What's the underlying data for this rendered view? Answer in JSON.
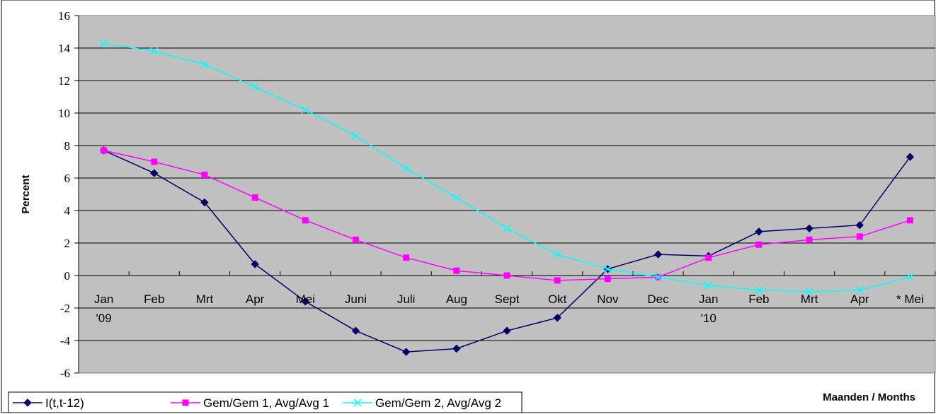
{
  "chart_data": {
    "type": "line",
    "categories": [
      "Jan '09",
      "Feb",
      "Mrt",
      "Apr",
      "Mei",
      "Juni",
      "Juli",
      "Aug",
      "Sept",
      "Okt",
      "Nov",
      "Dec",
      "Jan '10",
      "Feb",
      "Mrt",
      "Apr",
      "* Mei"
    ],
    "category_lines": [
      [
        "Jan",
        "'09"
      ],
      [
        "Feb"
      ],
      [
        "Mrt"
      ],
      [
        "Apr"
      ],
      [
        "Mei"
      ],
      [
        "Juni"
      ],
      [
        "Juli"
      ],
      [
        "Aug"
      ],
      [
        "Sept"
      ],
      [
        "Okt"
      ],
      [
        "Nov"
      ],
      [
        "Dec"
      ],
      [
        "Jan",
        "'10"
      ],
      [
        "Feb"
      ],
      [
        "Mrt"
      ],
      [
        "Apr"
      ],
      [
        "* Mei"
      ]
    ],
    "series": [
      {
        "name": "I(t,t-12)",
        "color": "#000066",
        "marker": "diamond",
        "values": [
          7.7,
          6.3,
          4.5,
          0.7,
          -1.6,
          -3.4,
          -4.7,
          -4.5,
          -3.4,
          -2.6,
          0.4,
          1.3,
          1.2,
          2.7,
          2.9,
          3.1,
          7.3
        ]
      },
      {
        "name": "Gem/Gem 1, Avg/Avg 1",
        "color": "#ff00ff",
        "marker": "square",
        "values": [
          7.7,
          7.0,
          6.2,
          4.8,
          3.4,
          2.2,
          1.1,
          0.3,
          0.0,
          -0.3,
          -0.2,
          -0.1,
          1.1,
          1.9,
          2.2,
          2.4,
          3.4
        ]
      },
      {
        "name": "Gem/Gem 2, Avg/Avg 2",
        "color": "#00ffff",
        "marker": "x",
        "values": [
          14.3,
          13.8,
          13.0,
          11.6,
          10.2,
          8.6,
          6.6,
          4.8,
          2.9,
          1.3,
          0.4,
          -0.1,
          -0.6,
          -0.9,
          -1.0,
          -0.9,
          -0.1
        ]
      }
    ],
    "yticks": [
      -6,
      -4,
      -2,
      0,
      2,
      4,
      6,
      8,
      10,
      12,
      14,
      16
    ],
    "ylim": [
      -6,
      16
    ],
    "ylabel": "Percent",
    "xlabel": "Maanden / Months",
    "plot_background": "#c0c0c0",
    "grid": "horizontal",
    "legend_position": "bottom-left"
  }
}
